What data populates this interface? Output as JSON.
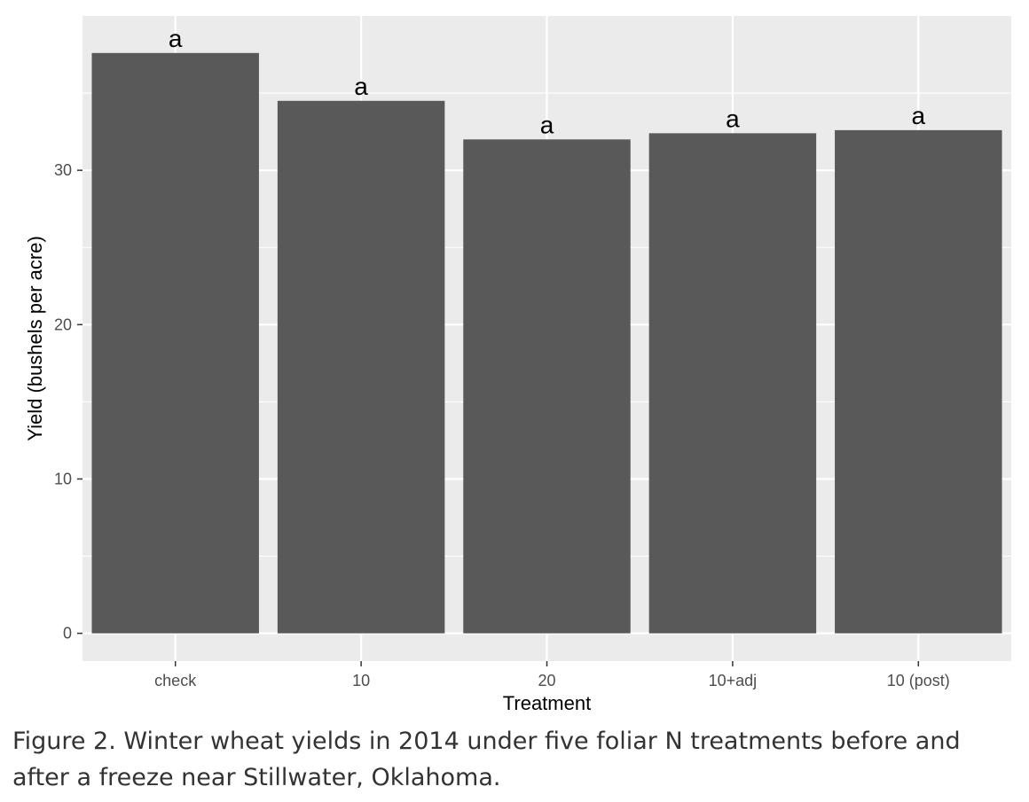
{
  "chart_data": {
    "type": "bar",
    "categories": [
      "check",
      "10",
      "20",
      "10+adj",
      "10 (post)"
    ],
    "values": [
      37.6,
      34.5,
      32.0,
      32.4,
      32.6
    ],
    "bar_labels": [
      "a",
      "a",
      "a",
      "a",
      "a"
    ],
    "xlabel": "Treatment",
    "ylabel": "Yield (bushels per acre)",
    "ylim": [
      -1.8,
      40.0
    ],
    "yticks": [
      0,
      10,
      20,
      30
    ],
    "grid": true,
    "colors": {
      "panel_background": "#ebebeb",
      "grid": "#ffffff",
      "bar": "#595959",
      "tick": "#333333"
    }
  },
  "caption": "Figure 2. Winter wheat yields in 2014 under five foliar N treatments before and after a freeze near Stillwater, Oklahoma."
}
